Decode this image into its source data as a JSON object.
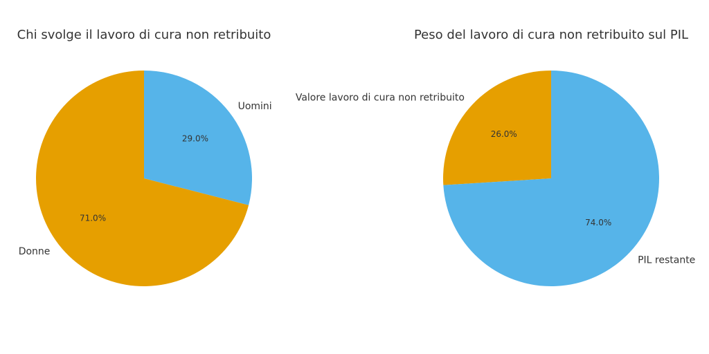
{
  "chart_data": [
    {
      "type": "pie",
      "title": "Chi svolge il lavoro di cura non retribuito",
      "start_angle_deg": 90,
      "direction": "clockwise",
      "slices": [
        {
          "label": "Uomini",
          "value": 29.0,
          "pct_label": "29.0%",
          "color": "#56B4E9"
        },
        {
          "label": "Donne",
          "value": 71.0,
          "pct_label": "71.0%",
          "color": "#E69F00"
        }
      ]
    },
    {
      "type": "pie",
      "title": "Peso del lavoro di cura non retribuito sul PIL",
      "start_angle_deg": 90,
      "direction": "counterclockwise",
      "slices": [
        {
          "label": "Valore lavoro di cura non retribuito",
          "value": 26.0,
          "pct_label": "26.0%",
          "color": "#E69F00"
        },
        {
          "label": "PIL restante",
          "value": 74.0,
          "pct_label": "74.0%",
          "color": "#56B4E9"
        }
      ]
    }
  ]
}
